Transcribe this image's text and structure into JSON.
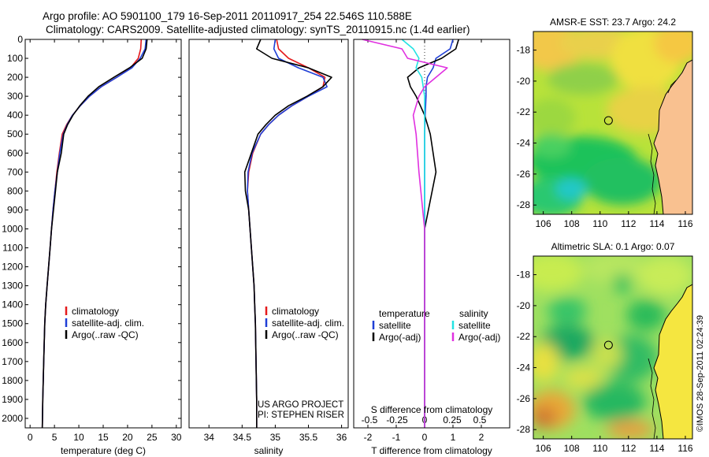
{
  "header": {
    "line1": "Argo profile: AO 5901100_179 16-Sep-2011 20110917_254 22.546S 110.588E",
    "line2": "Climatology: CARS2009. Satellite-adjusted climatology: synTS_20110915.nc (1.4d earlier)"
  },
  "colors": {
    "climatology": "#e41a1c",
    "satellite": "#1f3fd6",
    "argo": "#000000",
    "satellite_s": "#22e3e3",
    "argo_s": "#e030e0"
  },
  "chart_data": [
    {
      "type": "line",
      "panel": "temperature",
      "xlabel": "temperature (deg C)",
      "xlim": [
        -1,
        31
      ],
      "ylim": [
        0,
        2050
      ],
      "y_reversed": true,
      "xticks": [
        0,
        5,
        10,
        15,
        20,
        25,
        30
      ],
      "yticks": [
        0,
        100,
        200,
        300,
        400,
        500,
        600,
        700,
        800,
        900,
        1000,
        1100,
        1200,
        1300,
        1400,
        1500,
        1600,
        1700,
        1800,
        1900,
        2000
      ],
      "legend": [
        "climatology",
        "satellite-adj. clim.",
        "Argo(..raw -QC)"
      ],
      "series": [
        {
          "name": "climatology",
          "color": "climatology",
          "x": [
            22.8,
            22.7,
            22.2,
            20.6,
            17.8,
            14.6,
            12.2,
            10.3,
            8.7,
            7.5,
            6.6,
            6.0,
            5.5,
            5.1,
            4.7,
            4.4,
            4.1,
            3.8,
            3.5,
            3.2,
            3.0,
            2.8,
            2.6,
            2.5
          ],
          "y": [
            0,
            50,
            100,
            150,
            200,
            250,
            300,
            350,
            400,
            450,
            500,
            600,
            700,
            800,
            900,
            1000,
            1100,
            1200,
            1300,
            1400,
            1500,
            1700,
            1900,
            2050
          ]
        },
        {
          "name": "satellite-adj. clim.",
          "color": "satellite",
          "x": [
            23.8,
            23.6,
            22.6,
            20.9,
            17.8,
            14.6,
            12.2,
            10.3,
            8.7,
            7.6,
            6.8,
            6.1,
            5.6,
            5.1,
            4.7,
            4.4,
            4.1,
            3.8,
            3.5,
            3.2,
            3.0,
            2.8,
            2.6,
            2.5
          ],
          "y": [
            0,
            50,
            100,
            150,
            200,
            250,
            300,
            350,
            400,
            450,
            500,
            600,
            700,
            800,
            900,
            1000,
            1100,
            1200,
            1300,
            1400,
            1500,
            1700,
            1900,
            2050
          ]
        },
        {
          "name": "Argo(..raw -QC)",
          "color": "argo",
          "x": [
            24.0,
            23.8,
            23.0,
            20.4,
            17.2,
            14.1,
            11.9,
            10.2,
            8.8,
            7.7,
            6.9,
            6.4,
            5.6,
            5.2,
            4.8,
            4.4,
            4.1,
            3.8,
            3.5,
            3.2,
            3.0,
            2.8,
            2.6,
            2.5
          ],
          "y": [
            0,
            50,
            100,
            150,
            200,
            250,
            300,
            350,
            400,
            450,
            500,
            600,
            700,
            800,
            900,
            1000,
            1100,
            1200,
            1300,
            1400,
            1500,
            1700,
            1900,
            2050
          ]
        }
      ]
    },
    {
      "type": "line",
      "panel": "salinity",
      "xlabel": "salinity",
      "xlim": [
        33.7,
        36.1
      ],
      "ylim": [
        0,
        2050
      ],
      "y_reversed": true,
      "xticks": [
        34,
        34.5,
        35,
        35.5,
        36
      ],
      "xticklabels": [
        "34",
        "34.5",
        "35",
        "35.5",
        "36"
      ],
      "legend": [
        "climatology",
        "satellite-adj. clim.",
        "Argo(..raw -QC)"
      ],
      "annotation": [
        "US ARGO PROJECT",
        "PI: STEPHEN RISER"
      ],
      "series": [
        {
          "name": "climatology",
          "color": "climatology",
          "x": [
            35.02,
            35.05,
            35.2,
            35.5,
            35.75,
            35.72,
            35.5,
            35.25,
            35.05,
            34.9,
            34.78,
            34.66,
            34.6,
            34.58,
            34.6,
            34.62,
            34.64,
            34.66,
            34.68,
            34.69,
            34.7,
            34.71,
            34.72,
            34.72
          ],
          "y": [
            0,
            50,
            100,
            150,
            200,
            250,
            300,
            350,
            400,
            450,
            500,
            600,
            700,
            800,
            900,
            1000,
            1100,
            1200,
            1300,
            1400,
            1500,
            1700,
            1900,
            2050
          ]
        },
        {
          "name": "satellite-adj. clim.",
          "color": "satellite",
          "x": [
            35.0,
            34.98,
            35.05,
            35.35,
            35.72,
            35.78,
            35.5,
            35.25,
            35.05,
            34.9,
            34.78,
            34.65,
            34.59,
            34.58,
            34.6,
            34.62,
            34.64,
            34.66,
            34.68,
            34.69,
            34.7,
            34.71,
            34.72,
            34.72
          ],
          "y": [
            0,
            50,
            100,
            150,
            200,
            250,
            300,
            350,
            400,
            450,
            500,
            600,
            700,
            800,
            900,
            1000,
            1100,
            1200,
            1300,
            1400,
            1500,
            1700,
            1900,
            2050
          ]
        },
        {
          "name": "Argo(..raw -QC)",
          "color": "argo",
          "x": [
            34.78,
            34.72,
            34.95,
            35.5,
            35.85,
            35.72,
            35.48,
            35.2,
            35.0,
            34.86,
            34.74,
            34.64,
            34.54,
            34.55,
            34.6,
            34.62,
            34.64,
            34.66,
            34.68,
            34.69,
            34.7,
            34.71,
            34.72,
            34.72
          ],
          "y": [
            0,
            50,
            100,
            150,
            200,
            250,
            300,
            350,
            400,
            450,
            500,
            600,
            700,
            800,
            900,
            1000,
            1100,
            1200,
            1300,
            1400,
            1500,
            1700,
            1900,
            2050
          ]
        }
      ]
    },
    {
      "type": "line",
      "panel": "difference",
      "xlabel": "T difference from climatology",
      "xlabel_top": "S difference from climatology",
      "xlim": [
        -2.5,
        3
      ],
      "ylim": [
        0,
        2050
      ],
      "y_reversed": true,
      "xticks": [
        -2,
        -1,
        0,
        1,
        2
      ],
      "top_ticklabels": [
        "-0.5",
        "-0.25",
        "0",
        "0.25",
        "0.5"
      ],
      "legend_titles": [
        "temperature",
        "salinity"
      ],
      "legend": [
        "satellite",
        "Argo(-adj)",
        "satellite",
        "Argo(-adj)"
      ],
      "series": [
        {
          "name": "temperature satellite",
          "color": "satellite",
          "x": [
            1.0,
            0.9,
            0.4,
            0.3,
            0.1,
            0.05,
            0.05,
            0.02,
            0.0,
            0.0,
            0.0,
            0.0,
            0.0
          ],
          "y": [
            0,
            50,
            100,
            150,
            200,
            250,
            300,
            400,
            500,
            700,
            1000,
            1500,
            2050
          ]
        },
        {
          "name": "temperature Argo(-adj)",
          "color": "argo",
          "x": [
            1.2,
            1.1,
            0.6,
            -0.2,
            -0.6,
            -0.5,
            -0.3,
            0.0,
            0.2,
            0.4,
            0.0,
            0.0,
            0.0
          ],
          "y": [
            0,
            50,
            100,
            150,
            200,
            250,
            300,
            400,
            500,
            700,
            1000,
            1500,
            2050
          ]
        },
        {
          "name": "salinity satellite",
          "color": "satellite_s",
          "x": [
            -0.8,
            -0.4,
            -0.2,
            -0.3,
            -0.1,
            -0.05,
            0.0,
            0.0,
            0.0,
            0.0,
            0.0,
            0.0,
            0.0
          ],
          "y": [
            0,
            50,
            100,
            150,
            200,
            250,
            300,
            400,
            500,
            700,
            1000,
            1500,
            2050
          ]
        },
        {
          "name": "salinity Argo(-adj)",
          "color": "argo_s",
          "x": [
            -2.2,
            -0.8,
            -0.6,
            0.8,
            0.4,
            0.0,
            -0.2,
            -0.4,
            -0.3,
            -0.2,
            0.0,
            0.0,
            0.0
          ],
          "y": [
            0,
            50,
            100,
            150,
            200,
            250,
            300,
            400,
            500,
            700,
            1000,
            1500,
            2050
          ]
        }
      ]
    },
    {
      "type": "heatmap",
      "panel": "sst-map",
      "title": "AMSR-E SST: 23.7  Argo: 24.2",
      "xlim": [
        105.3,
        116.5
      ],
      "ylim": [
        -28.6,
        -16.8
      ],
      "xticks": [
        106,
        108,
        110,
        112,
        114,
        116
      ],
      "yticks": [
        -18,
        -20,
        -22,
        -24,
        -26,
        -28
      ],
      "marker": {
        "lon": 110.588,
        "lat": -22.546
      }
    },
    {
      "type": "heatmap",
      "panel": "sla-map",
      "title": "Altimetric SLA: 0.1  Argo: 0.07",
      "side_label": "©IMOS 28-Sep-2011 02:24:39",
      "xlim": [
        105.3,
        116.5
      ],
      "ylim": [
        -28.6,
        -16.8
      ],
      "xticks": [
        106,
        108,
        110,
        112,
        114,
        116
      ],
      "yticks": [
        -18,
        -20,
        -22,
        -24,
        -26,
        -28
      ],
      "marker": {
        "lon": 110.588,
        "lat": -22.546
      }
    }
  ]
}
